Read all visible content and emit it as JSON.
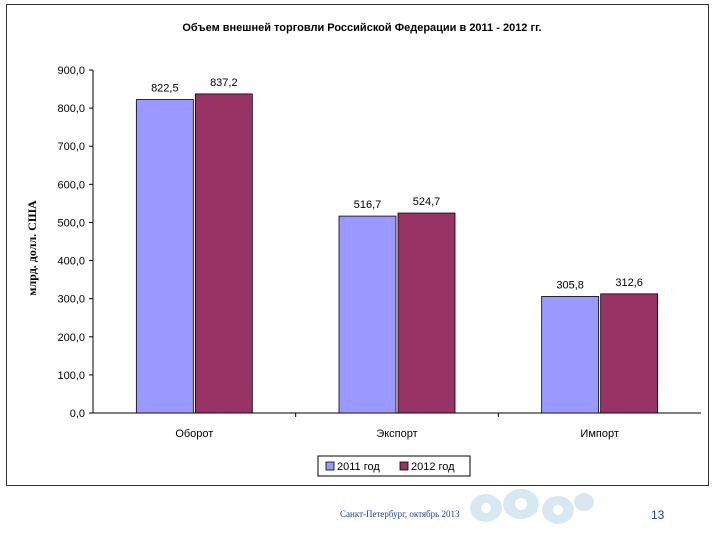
{
  "chart_data": {
    "type": "bar",
    "title": "Объем внешней торговли Российской Федерации в 2011 - 2012 гг.",
    "ylabel": "млрд. долл. США",
    "xlabel": "",
    "categories": [
      "Оборот",
      "Экспорт",
      "Импорт"
    ],
    "series": [
      {
        "name": "2011 год",
        "color": "#9999ff",
        "values": [
          822.5,
          516.7,
          305.8
        ],
        "labels": [
          "822,5",
          "516,7",
          "305,8"
        ]
      },
      {
        "name": "2012 год",
        "color": "#993366",
        "values": [
          837.2,
          524.7,
          312.6
        ],
        "labels": [
          "837,2",
          "524,7",
          "312,6"
        ]
      }
    ],
    "ylim": [
      0,
      900
    ],
    "yticks": [
      0,
      100,
      200,
      300,
      400,
      500,
      600,
      700,
      800,
      900
    ],
    "ytick_labels": [
      "0,0",
      "100,0",
      "200,0",
      "300,0",
      "400,0",
      "500,0",
      "600,0",
      "700,0",
      "800,0",
      "900,0"
    ],
    "grid": false,
    "legend_position": "bottom"
  },
  "footer": {
    "text": "Санкт-Петербург, октябрь 2013",
    "page_number": "13",
    "ornament_icon": "snowflake-ornament-icon"
  }
}
